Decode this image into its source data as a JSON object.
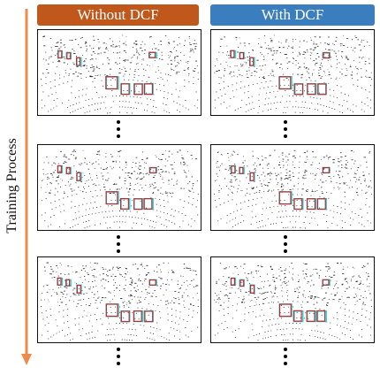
{
  "headers": {
    "left": "Without DCF",
    "right": "With DCF"
  },
  "side_label": "Training Process",
  "colors": {
    "left_header": "#C0571B",
    "right_header": "#3B7EBF",
    "arrow": "#EE8A4A",
    "box_cyan": "#26D6D6",
    "box_red": "#C0282D"
  },
  "rows": [
    {
      "stage": 1,
      "left": "without-dcf-result",
      "right": "with-dcf-result"
    },
    {
      "stage": 2,
      "left": "without-dcf-result",
      "right": "with-dcf-result"
    },
    {
      "stage": 3,
      "left": "without-dcf-result",
      "right": "with-dcf-result"
    }
  ]
}
